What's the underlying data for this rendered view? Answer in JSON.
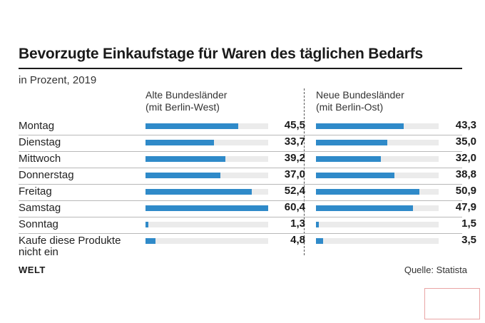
{
  "title": "Bevorzugte Einkaufstage für Waren des täglichen Bedarfs",
  "subtitle": "in Prozent, 2019",
  "footer": {
    "brand": "WELT",
    "source": "Quelle: Statista"
  },
  "colors": {
    "bar": "#2f8ac9",
    "track": "#ebebeb"
  },
  "chart_data": {
    "type": "bar",
    "orientation": "horizontal",
    "categories": [
      [
        "Montag"
      ],
      [
        "Dienstag"
      ],
      [
        "Mittwoch"
      ],
      [
        "Donnerstag"
      ],
      [
        "Freitag"
      ],
      [
        "Samstag"
      ],
      [
        "Sonntag"
      ],
      [
        "Kaufe diese Produkte",
        "nicht ein"
      ]
    ],
    "xlim": [
      0,
      60.4
    ],
    "series": [
      {
        "name": [
          "Alte Bundesländer",
          "(mit Berlin-West)"
        ],
        "values": [
          45.5,
          33.7,
          39.2,
          37.0,
          52.4,
          60.4,
          1.3,
          4.8
        ],
        "labels": [
          "45,5",
          "33,7",
          "39,2",
          "37,0",
          "52,4",
          "60,4",
          "1,3",
          "4,8"
        ]
      },
      {
        "name": [
          "Neue Bundesländer",
          "(mit Berlin-Ost)"
        ],
        "values": [
          43.3,
          35.0,
          32.0,
          38.8,
          50.9,
          47.9,
          1.5,
          3.5
        ],
        "labels": [
          "43,3",
          "35,0",
          "32,0",
          "38,8",
          "50,9",
          "47,9",
          "1,5",
          "3,5"
        ]
      }
    ]
  }
}
